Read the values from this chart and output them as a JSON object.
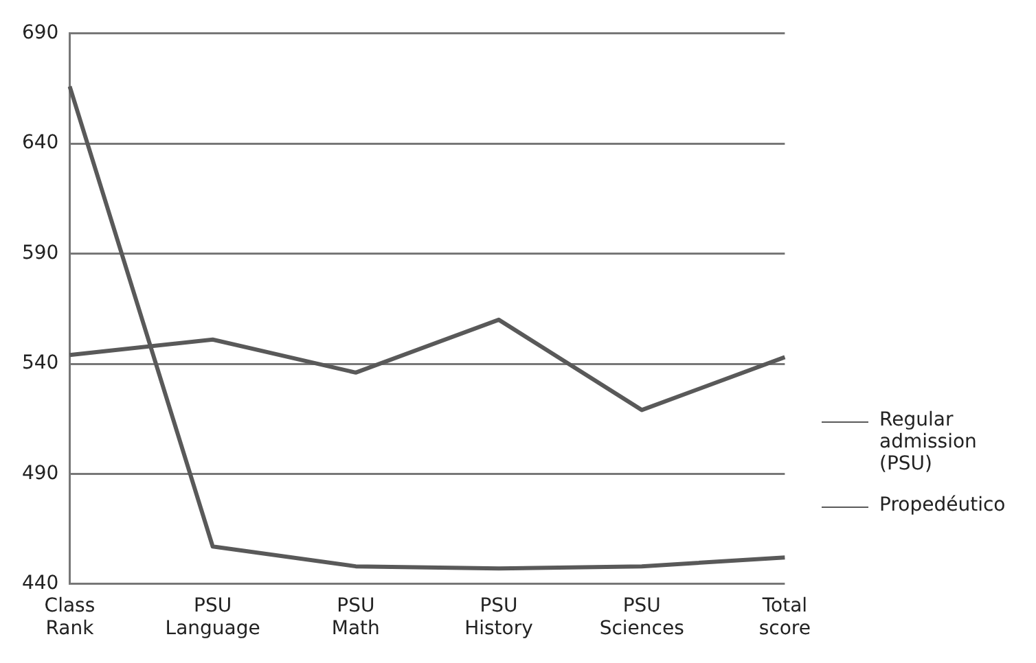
{
  "chart_data": {
    "type": "line",
    "categories": [
      "Class Rank",
      "PSU Language",
      "PSU Math",
      "PSU History",
      "PSU Sciences",
      "Total score"
    ],
    "series": [
      {
        "name": "Regular admission (PSU)",
        "color": "#595959",
        "values": [
          544,
          551,
          536,
          560,
          519,
          543
        ]
      },
      {
        "name": "Propedéutico",
        "color": "#595959",
        "values": [
          666,
          457,
          448,
          447,
          448,
          452
        ]
      }
    ],
    "ylim": [
      440,
      690
    ],
    "yticks": [
      440,
      490,
      540,
      590,
      640,
      690
    ],
    "grid": "y",
    "legend": "right",
    "marker": "none",
    "line_style": "solid"
  }
}
